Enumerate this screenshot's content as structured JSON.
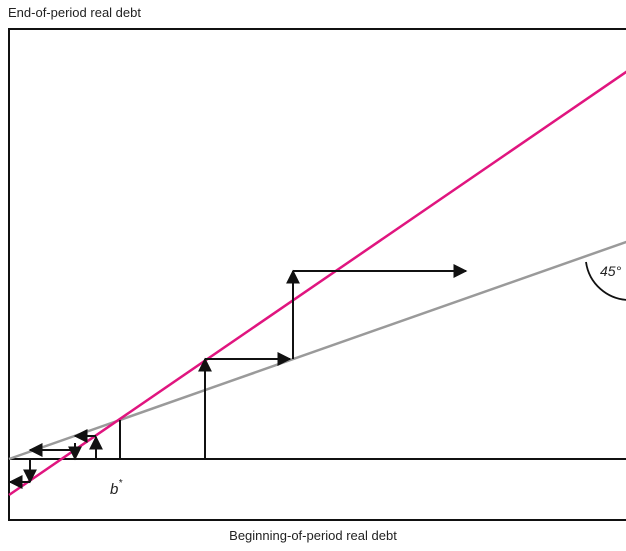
{
  "labels": {
    "y_axis": "End-of-period real debt",
    "x_axis": "Beginning-of-period real debt",
    "equilibrium": "b",
    "equilibrium_superscript": "*",
    "angle": "45°"
  },
  "colors": {
    "frame": "#111111",
    "steep_line": "#e0157f",
    "diagonal_line": "#9a9a9a",
    "arrows": "#111111"
  }
}
